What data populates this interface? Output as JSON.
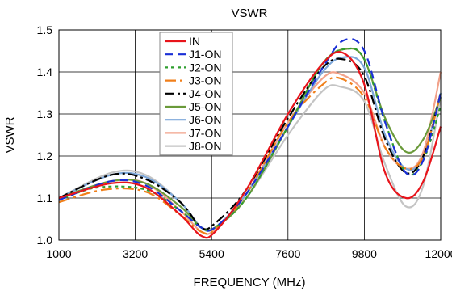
{
  "chart_data": {
    "type": "line",
    "title": "VSWR",
    "xlabel": "FREQUENCY (MHz)",
    "ylabel": "VSWR",
    "xlim": [
      1000,
      12000
    ],
    "ylim": [
      1.0,
      1.5
    ],
    "xticks": [
      1000,
      3200,
      5400,
      7600,
      9800,
      12000
    ],
    "xtick_labels": [
      "1000",
      "3200",
      "5400",
      "7600",
      "9800",
      "12000"
    ],
    "yticks": [
      1.0,
      1.1,
      1.2,
      1.3,
      1.4,
      1.5
    ],
    "ytick_labels": [
      "1.0",
      "1.1",
      "1.2",
      "1.3",
      "1.4",
      "1.5"
    ],
    "grid": true,
    "legend_position": "top-center",
    "series": [
      {
        "name": "IN",
        "color": "#e8141b",
        "dash": "solid",
        "x": [
          1000,
          2500,
          3500,
          4500,
          5100,
          5500,
          6400,
          7600,
          8600,
          9200,
          9800,
          10400,
          11000,
          11500,
          12000
        ],
        "y": [
          1.1,
          1.135,
          1.125,
          1.06,
          1.01,
          1.02,
          1.12,
          1.3,
          1.42,
          1.445,
          1.37,
          1.16,
          1.1,
          1.14,
          1.27
        ]
      },
      {
        "name": "J1-ON",
        "color": "#1a2fd6",
        "dash": "10,6",
        "x": [
          1000,
          2500,
          3500,
          4500,
          5100,
          5500,
          6400,
          7600,
          8600,
          9200,
          9800,
          10400,
          11000,
          11500,
          12000
        ],
        "y": [
          1.095,
          1.14,
          1.13,
          1.07,
          1.03,
          1.03,
          1.11,
          1.27,
          1.41,
          1.475,
          1.45,
          1.28,
          1.16,
          1.19,
          1.35
        ]
      },
      {
        "name": "J2-ON",
        "color": "#2e9e2e",
        "dash": "4,4",
        "x": [
          1000,
          2100,
          3500,
          4500,
          5100,
          5500,
          6400,
          7600,
          8600,
          9300,
          9800,
          10400,
          11000,
          11500,
          12000
        ],
        "y": [
          1.095,
          1.125,
          1.12,
          1.07,
          1.03,
          1.03,
          1.1,
          1.27,
          1.42,
          1.455,
          1.43,
          1.28,
          1.16,
          1.19,
          1.32
        ]
      },
      {
        "name": "J3-ON",
        "color": "#f07f1a",
        "dash": "14,5,3,5",
        "x": [
          1000,
          2300,
          3500,
          4500,
          5100,
          5500,
          6400,
          7600,
          8600,
          9100,
          9800,
          10400,
          11000,
          11500,
          12000
        ],
        "y": [
          1.09,
          1.12,
          1.115,
          1.06,
          1.02,
          1.025,
          1.11,
          1.28,
          1.37,
          1.385,
          1.34,
          1.22,
          1.17,
          1.2,
          1.35
        ]
      },
      {
        "name": "J4-ON",
        "color": "#000000",
        "dash": "12,4,3,4",
        "x": [
          1000,
          2500,
          3500,
          4500,
          5100,
          5500,
          6400,
          7600,
          8600,
          9200,
          9800,
          10400,
          11000,
          11500,
          12000
        ],
        "y": [
          1.1,
          1.155,
          1.145,
          1.09,
          1.03,
          1.04,
          1.12,
          1.29,
          1.41,
          1.43,
          1.39,
          1.24,
          1.16,
          1.2,
          1.35
        ]
      },
      {
        "name": "J5-ON",
        "color": "#6a9a3a",
        "dash": "solid",
        "x": [
          1000,
          2500,
          3500,
          4500,
          5100,
          5500,
          6400,
          7600,
          8600,
          9300,
          9800,
          10400,
          11000,
          11500,
          12000
        ],
        "y": [
          1.1,
          1.14,
          1.135,
          1.08,
          1.03,
          1.03,
          1.1,
          1.27,
          1.42,
          1.455,
          1.43,
          1.29,
          1.21,
          1.24,
          1.34
        ]
      },
      {
        "name": "J6-ON",
        "color": "#7da7d9",
        "dash": "solid",
        "x": [
          1000,
          2500,
          3500,
          4500,
          5100,
          5500,
          6400,
          7600,
          8600,
          9200,
          9800,
          10400,
          11000,
          11500,
          12000
        ],
        "y": [
          1.1,
          1.155,
          1.15,
          1.09,
          1.03,
          1.03,
          1.11,
          1.27,
          1.4,
          1.435,
          1.41,
          1.25,
          1.17,
          1.2,
          1.35
        ]
      },
      {
        "name": "J7-ON",
        "color": "#f2a28a",
        "dash": "solid",
        "x": [
          1000,
          2500,
          3500,
          4500,
          5100,
          5500,
          6400,
          7600,
          8600,
          9100,
          9800,
          10400,
          11000,
          11500,
          12000
        ],
        "y": [
          1.1,
          1.14,
          1.135,
          1.07,
          1.02,
          1.025,
          1.11,
          1.28,
          1.385,
          1.395,
          1.35,
          1.22,
          1.17,
          1.21,
          1.4
        ]
      },
      {
        "name": "J8-ON",
        "color": "#c4c4c4",
        "dash": "solid",
        "x": [
          1000,
          2500,
          3500,
          4500,
          5100,
          5500,
          6400,
          7600,
          8600,
          9100,
          9800,
          10400,
          11000,
          11500,
          12000
        ],
        "y": [
          1.1,
          1.16,
          1.155,
          1.09,
          1.03,
          1.03,
          1.1,
          1.25,
          1.355,
          1.365,
          1.33,
          1.18,
          1.08,
          1.13,
          1.34
        ]
      }
    ]
  }
}
